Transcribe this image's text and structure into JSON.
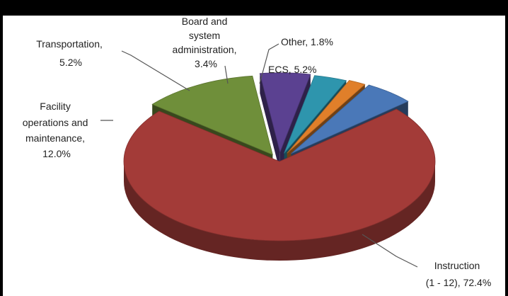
{
  "chart_data": {
    "type": "pie",
    "title": "",
    "slices": [
      {
        "label": "ECS",
        "value": 5.2,
        "display": "5.2%",
        "color": "#4a78b8"
      },
      {
        "label": "Instruction (1 - 12)",
        "value": 72.4,
        "display": "72.4%",
        "color": "#a33b38"
      },
      {
        "label": "Facility operations and maintenance",
        "value": 12.0,
        "display": "12.0%",
        "color": "#6f8f3a"
      },
      {
        "label": "Transportation",
        "value": 5.2,
        "display": "5.2%",
        "color": "#5b4191"
      },
      {
        "label": "Board and system administration",
        "value": 3.4,
        "display": "3.4%",
        "color": "#2e95ad"
      },
      {
        "label": "Other",
        "value": 1.8,
        "display": "1.8%",
        "color": "#e07f2a"
      }
    ],
    "label_text": {
      "ecs": [
        "ECS, 5.2%"
      ],
      "instruction": [
        "Instruction",
        "(1 - 12), 72.4%"
      ],
      "facility": [
        "Facility",
        "operations and",
        "maintenance,",
        "12.0%"
      ],
      "transportation": [
        "Transportation,",
        "5.2%"
      ],
      "board": [
        "Board and",
        "system",
        "administration,",
        "3.4%"
      ],
      "other": [
        "Other, 1.8%"
      ]
    },
    "legend": "none",
    "style": "3d-exploded"
  }
}
